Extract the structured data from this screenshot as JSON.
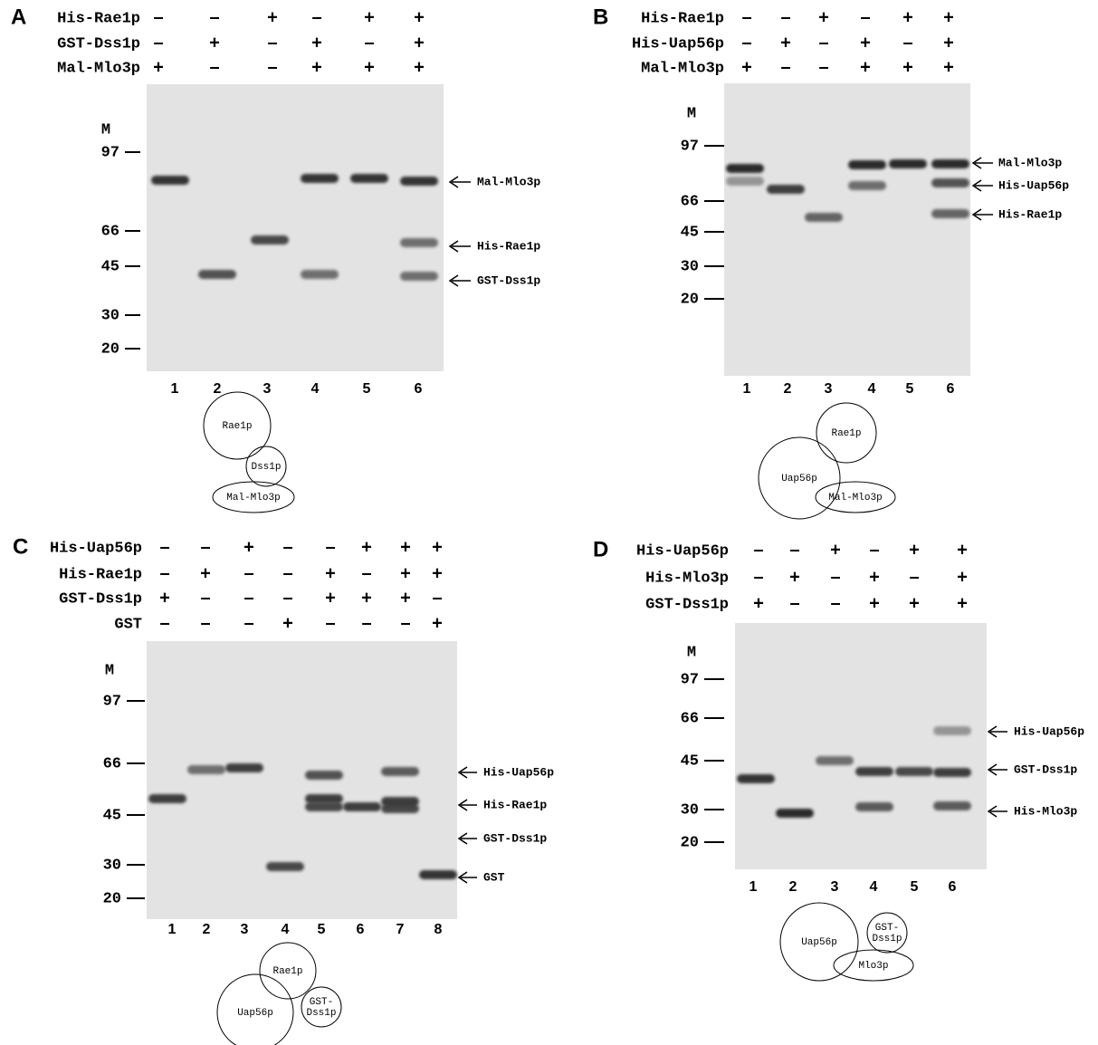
{
  "panels": [
    {
      "label": "A",
      "rows": [
        {
          "name": "His-Rae1p",
          "signs": [
            "–",
            "–",
            "+",
            "–",
            "+",
            "+"
          ]
        },
        {
          "name": "GST-Dss1p",
          "signs": [
            "–",
            "+",
            "–",
            "+",
            "–",
            "+"
          ]
        },
        {
          "name": "Mal-Mlo3p",
          "signs": [
            "+",
            "–",
            "–",
            "+",
            "+",
            "+"
          ]
        }
      ],
      "marker_label": "M",
      "markers": [
        "97",
        "66",
        "45",
        "30",
        "20"
      ],
      "lanes": [
        "1",
        "2",
        "3",
        "4",
        "5",
        "6"
      ],
      "bands": [
        "Mal-Mlo3p",
        "His-Rae1p",
        "GST-Dss1p"
      ],
      "diagram": [
        [
          "Rae1p"
        ],
        [
          "Dss1p"
        ],
        [
          "Mal-Mlo3p"
        ]
      ]
    },
    {
      "label": "B",
      "rows": [
        {
          "name": "His-Rae1p",
          "signs": [
            "–",
            "–",
            "+",
            "–",
            "+",
            "+"
          ]
        },
        {
          "name": "His-Uap56p",
          "signs": [
            "–",
            "+",
            "–",
            "+",
            "–",
            "+"
          ]
        },
        {
          "name": "Mal-Mlo3p",
          "signs": [
            "+",
            "–",
            "–",
            "+",
            "+",
            "+"
          ]
        }
      ],
      "marker_label": "M",
      "markers": [
        "97",
        "66",
        "45",
        "30",
        "20"
      ],
      "lanes": [
        "1",
        "2",
        "3",
        "4",
        "5",
        "6"
      ],
      "bands": [
        "Mal-Mlo3p",
        "His-Uap56p",
        "His-Rae1p"
      ],
      "diagram": [
        [
          "Rae1p"
        ],
        [
          "Uap56p"
        ],
        [
          "Mal-Mlo3p"
        ]
      ]
    },
    {
      "label": "C",
      "rows": [
        {
          "name": "His-Uap56p",
          "signs": [
            "–",
            "–",
            "+",
            "–",
            "–",
            "+",
            "+",
            "+"
          ]
        },
        {
          "name": "His-Rae1p",
          "signs": [
            "–",
            "+",
            "–",
            "–",
            "+",
            "–",
            "+",
            "+"
          ]
        },
        {
          "name": "GST-Dss1p",
          "signs": [
            "+",
            "–",
            "–",
            "–",
            "+",
            "+",
            "+",
            "–"
          ]
        },
        {
          "name": "GST",
          "signs": [
            "–",
            "–",
            "–",
            "+",
            "–",
            "–",
            "–",
            "+"
          ]
        }
      ],
      "marker_label": "M",
      "markers": [
        "97",
        "66",
        "45",
        "30",
        "20"
      ],
      "lanes": [
        "1",
        "2",
        "3",
        "4",
        "5",
        "6",
        "7",
        "8"
      ],
      "bands": [
        "His-Uap56p",
        "His-Rae1p",
        "GST-Dss1p",
        "GST"
      ],
      "diagram": [
        [
          "Rae1p"
        ],
        [
          "Uap56p"
        ],
        [
          "GST-",
          "Dss1p"
        ]
      ]
    },
    {
      "label": "D",
      "rows": [
        {
          "name": "His-Uap56p",
          "signs": [
            "–",
            "–",
            "+",
            "–",
            "+",
            "+"
          ]
        },
        {
          "name": "His-Mlo3p",
          "signs": [
            "–",
            "+",
            "–",
            "+",
            "–",
            "+"
          ]
        },
        {
          "name": "GST-Dss1p",
          "signs": [
            "+",
            "–",
            "–",
            "+",
            "+",
            "+"
          ]
        }
      ],
      "marker_label": "M",
      "markers": [
        "97",
        "66",
        "45",
        "30",
        "20"
      ],
      "lanes": [
        "1",
        "2",
        "3",
        "4",
        "5",
        "6"
      ],
      "bands": [
        "His-Uap56p",
        "GST-Dss1p",
        "His-Mlo3p"
      ],
      "diagram": [
        [
          "Uap56p"
        ],
        [
          "GST-",
          "Dss1p"
        ],
        [
          "Mlo3p"
        ]
      ]
    }
  ]
}
